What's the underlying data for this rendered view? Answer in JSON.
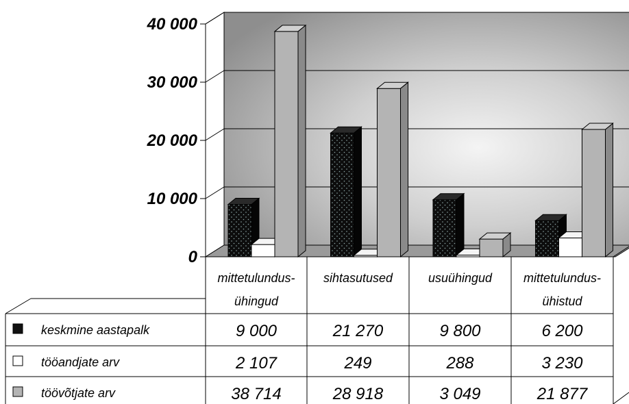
{
  "chart_data": {
    "type": "bar",
    "title": "",
    "xlabel": "",
    "ylabel": "",
    "ylim": [
      0,
      40000
    ],
    "grid": true,
    "legend": "table-left",
    "y_ticks": [
      "0",
      "10 000",
      "20 000",
      "30 000",
      "40 000"
    ],
    "categories": [
      [
        "mittetulundus-",
        "ühingud"
      ],
      [
        "sihtasutused"
      ],
      [
        "usuühingud"
      ],
      [
        "mittetulundus-",
        "ühistud"
      ]
    ],
    "series": [
      {
        "name": "keskmine aastapalk",
        "values": [
          9000,
          21270,
          9800,
          6200
        ],
        "labels": [
          "9 000",
          "21 270",
          "9 800",
          "6 200"
        ],
        "color": "#111111"
      },
      {
        "name": "tööandjate arv",
        "values": [
          2107,
          249,
          288,
          3230
        ],
        "labels": [
          "2 107",
          "249",
          "288",
          "3 230"
        ],
        "color": "#ffffff"
      },
      {
        "name": "töövõtjate arv",
        "values": [
          38714,
          28918,
          3049,
          21877
        ],
        "labels": [
          "38 714",
          "28 918",
          "3 049",
          "21 877"
        ],
        "color": "#b4b4b4"
      }
    ],
    "colors": {
      "wall_light": "#f2f2f2",
      "wall_dark": "#8a8a8a",
      "floor": "#9a9a9a"
    }
  }
}
